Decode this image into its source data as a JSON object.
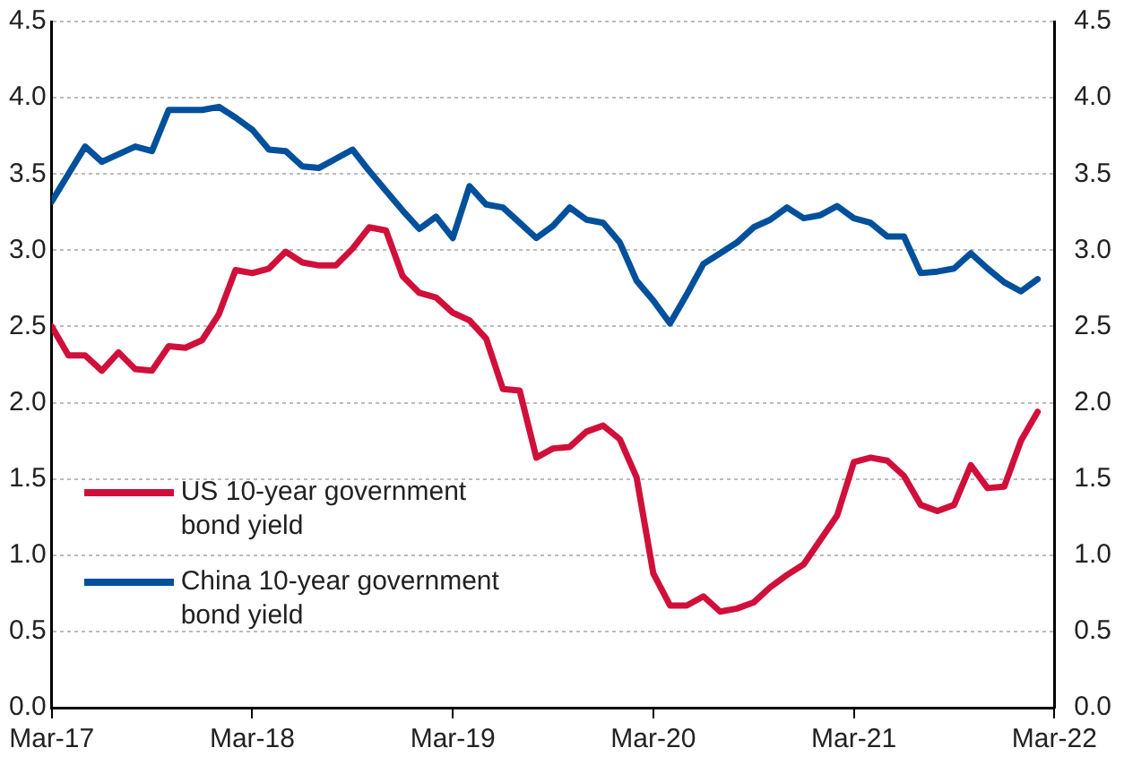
{
  "chart_data": {
    "type": "line",
    "x": [
      "2017-03",
      "2017-04",
      "2017-05",
      "2017-06",
      "2017-07",
      "2017-08",
      "2017-09",
      "2017-10",
      "2017-11",
      "2017-12",
      "2018-01",
      "2018-02",
      "2018-03",
      "2018-04",
      "2018-05",
      "2018-06",
      "2018-07",
      "2018-08",
      "2018-09",
      "2018-10",
      "2018-11",
      "2018-12",
      "2019-01",
      "2019-02",
      "2019-03",
      "2019-04",
      "2019-05",
      "2019-06",
      "2019-07",
      "2019-08",
      "2019-09",
      "2019-10",
      "2019-11",
      "2019-12",
      "2020-01",
      "2020-02",
      "2020-03",
      "2020-04",
      "2020-05",
      "2020-06",
      "2020-07",
      "2020-08",
      "2020-09",
      "2020-10",
      "2020-11",
      "2020-12",
      "2021-01",
      "2021-02",
      "2021-03",
      "2021-04",
      "2021-05",
      "2021-06",
      "2021-07",
      "2021-08",
      "2021-09",
      "2021-10",
      "2021-11",
      "2021-12",
      "2022-01",
      "2022-02"
    ],
    "series": [
      {
        "name": "US 10-year government bond yield",
        "color": "#d0103a",
        "values": [
          2.5,
          2.31,
          2.31,
          2.21,
          2.33,
          2.22,
          2.21,
          2.37,
          2.36,
          2.41,
          2.58,
          2.87,
          2.85,
          2.88,
          2.99,
          2.92,
          2.9,
          2.9,
          3.01,
          3.15,
          3.13,
          2.83,
          2.72,
          2.69,
          2.59,
          2.54,
          2.42,
          2.09,
          2.08,
          1.64,
          1.7,
          1.71,
          1.81,
          1.85,
          1.76,
          1.51,
          0.88,
          0.67,
          0.67,
          0.73,
          0.63,
          0.65,
          0.69,
          0.79,
          0.87,
          0.94,
          1.1,
          1.26,
          1.61,
          1.64,
          1.62,
          1.52,
          1.33,
          1.29,
          1.33,
          1.59,
          1.44,
          1.45,
          1.75,
          1.94
        ]
      },
      {
        "name": "China 10-year government bond yield",
        "color": "#00509b",
        "values": [
          3.32,
          3.5,
          3.68,
          3.58,
          3.63,
          3.68,
          3.65,
          3.92,
          3.92,
          3.92,
          3.94,
          3.87,
          3.79,
          3.66,
          3.65,
          3.55,
          3.54,
          3.6,
          3.66,
          3.52,
          3.39,
          3.26,
          3.14,
          3.22,
          3.08,
          3.42,
          3.3,
          3.28,
          3.18,
          3.08,
          3.16,
          3.28,
          3.2,
          3.18,
          3.05,
          2.8,
          2.67,
          2.52,
          2.71,
          2.91,
          2.98,
          3.05,
          3.15,
          3.2,
          3.28,
          3.21,
          3.23,
          3.29,
          3.21,
          3.18,
          3.09,
          3.09,
          2.85,
          2.86,
          2.88,
          2.98,
          2.88,
          2.79,
          2.73,
          2.81
        ]
      }
    ],
    "xlim": [
      "2017-03",
      "2022-03"
    ],
    "xticks": [
      {
        "value": "2017-03",
        "label": "Mar-17"
      },
      {
        "value": "2018-03",
        "label": "Mar-18"
      },
      {
        "value": "2019-03",
        "label": "Mar-19"
      },
      {
        "value": "2020-03",
        "label": "Mar-20"
      },
      {
        "value": "2021-03",
        "label": "Mar-21"
      },
      {
        "value": "2022-03",
        "label": "Mar-22"
      }
    ],
    "ylim": [
      0,
      4.5
    ],
    "yticks": [
      {
        "value": 0,
        "label": "0.0"
      },
      {
        "value": 0.5,
        "label": "0.5"
      },
      {
        "value": 1,
        "label": "1.0"
      },
      {
        "value": 1.5,
        "label": "1.5"
      },
      {
        "value": 2,
        "label": "2.0"
      },
      {
        "value": 2.5,
        "label": "2.5"
      },
      {
        "value": 3,
        "label": "3.0"
      },
      {
        "value": 3.5,
        "label": "3.5"
      },
      {
        "value": 4,
        "label": "4.0"
      },
      {
        "value": 4.5,
        "label": "4.5"
      }
    ],
    "y2lim": [
      0,
      4.5
    ],
    "y2ticks": [
      {
        "value": 0,
        "label": "0.0"
      },
      {
        "value": 0.5,
        "label": "0.5"
      },
      {
        "value": 1,
        "label": "1.0"
      },
      {
        "value": 1.5,
        "label": "1.5"
      },
      {
        "value": 2,
        "label": "2.0"
      },
      {
        "value": 2.5,
        "label": "2.5"
      },
      {
        "value": 3,
        "label": "3.0"
      },
      {
        "value": 3.5,
        "label": "3.5"
      },
      {
        "value": 4,
        "label": "4.0"
      },
      {
        "value": 4.5,
        "label": "4.5"
      }
    ],
    "grid": "y",
    "legend": "bottom left",
    "marker": "none",
    "line_style": "solid"
  }
}
